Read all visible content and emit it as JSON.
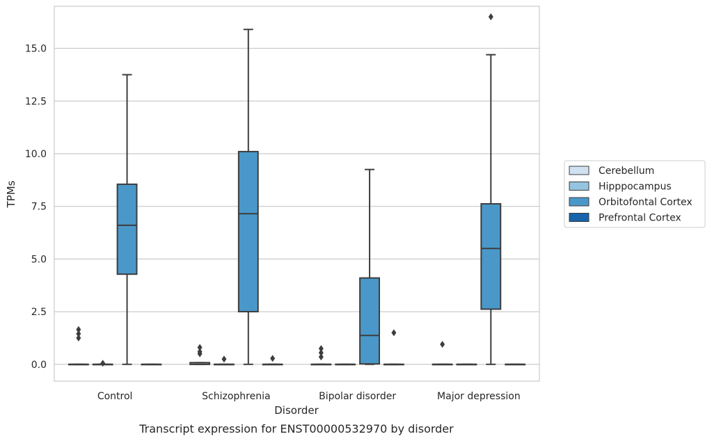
{
  "chart_data": {
    "type": "box",
    "title": "",
    "caption": "Transcript expression for ENST00000532970 by disorder",
    "xlabel": "Disorder",
    "ylabel": "TPMs",
    "ylim": [
      -0.8,
      17.0
    ],
    "yticks": [
      0.0,
      2.5,
      5.0,
      7.5,
      10.0,
      12.5,
      15.0
    ],
    "ytick_labels": [
      "0.0",
      "2.5",
      "5.0",
      "7.5",
      "10.0",
      "12.5",
      "15.0"
    ],
    "grid": "horizontal",
    "legend_position": "right",
    "categories": [
      "Control",
      "Schizophrenia",
      "Bipolar disorder",
      "Major depression"
    ],
    "series": [
      {
        "name": "Cerebellum",
        "color": "#d0e1f2",
        "boxes": [
          {
            "min": 0.0,
            "q1": 0.0,
            "median": 0.0,
            "q3": 0.0,
            "max": 0.0,
            "outliers": [
              1.25,
              1.45,
              1.65
            ]
          },
          {
            "min": 0.0,
            "q1": 0.0,
            "median": 0.0,
            "q3": 0.08,
            "max": 0.08,
            "outliers": [
              0.5,
              0.6,
              0.8
            ]
          },
          {
            "min": 0.0,
            "q1": 0.0,
            "median": 0.0,
            "q3": 0.0,
            "max": 0.0,
            "outliers": [
              0.35,
              0.55,
              0.75
            ]
          },
          {
            "min": 0.0,
            "q1": 0.0,
            "median": 0.0,
            "q3": 0.0,
            "max": 0.0,
            "outliers": [
              0.95
            ]
          }
        ]
      },
      {
        "name": "Hipppocampus",
        "color": "#94c4df",
        "boxes": [
          {
            "min": 0.0,
            "q1": 0.0,
            "median": 0.0,
            "q3": 0.0,
            "max": 0.0,
            "outliers": [
              0.05
            ]
          },
          {
            "min": 0.0,
            "q1": 0.0,
            "median": 0.0,
            "q3": 0.0,
            "max": 0.0,
            "outliers": [
              0.25
            ]
          },
          {
            "min": 0.0,
            "q1": 0.0,
            "median": 0.0,
            "q3": 0.0,
            "max": 0.0,
            "outliers": []
          },
          {
            "min": 0.0,
            "q1": 0.0,
            "median": 0.0,
            "q3": 0.0,
            "max": 0.0,
            "outliers": []
          }
        ]
      },
      {
        "name": "Orbitofontal Cortex",
        "color": "#4a98c9",
        "boxes": [
          {
            "min": 0.0,
            "q1": 4.28,
            "median": 6.6,
            "q3": 8.55,
            "max": 13.75,
            "outliers": []
          },
          {
            "min": 0.0,
            "q1": 2.5,
            "median": 7.15,
            "q3": 10.1,
            "max": 15.9,
            "outliers": []
          },
          {
            "min": 0.0,
            "q1": 0.02,
            "median": 1.37,
            "q3": 4.1,
            "max": 9.25,
            "outliers": []
          },
          {
            "min": 0.0,
            "q1": 2.62,
            "median": 5.5,
            "q3": 7.62,
            "max": 14.7,
            "outliers": [
              16.5
            ]
          }
        ]
      },
      {
        "name": "Prefrontal Cortex",
        "color": "#1764ab",
        "boxes": [
          {
            "min": 0.0,
            "q1": 0.0,
            "median": 0.0,
            "q3": 0.0,
            "max": 0.0,
            "outliers": []
          },
          {
            "min": 0.0,
            "q1": 0.0,
            "median": 0.0,
            "q3": 0.0,
            "max": 0.0,
            "outliers": [
              0.28
            ]
          },
          {
            "min": 0.0,
            "q1": 0.0,
            "median": 0.0,
            "q3": 0.0,
            "max": 0.0,
            "outliers": [
              1.5
            ]
          },
          {
            "min": 0.0,
            "q1": 0.0,
            "median": 0.0,
            "q3": 0.0,
            "max": 0.0,
            "outliers": []
          }
        ]
      }
    ]
  }
}
